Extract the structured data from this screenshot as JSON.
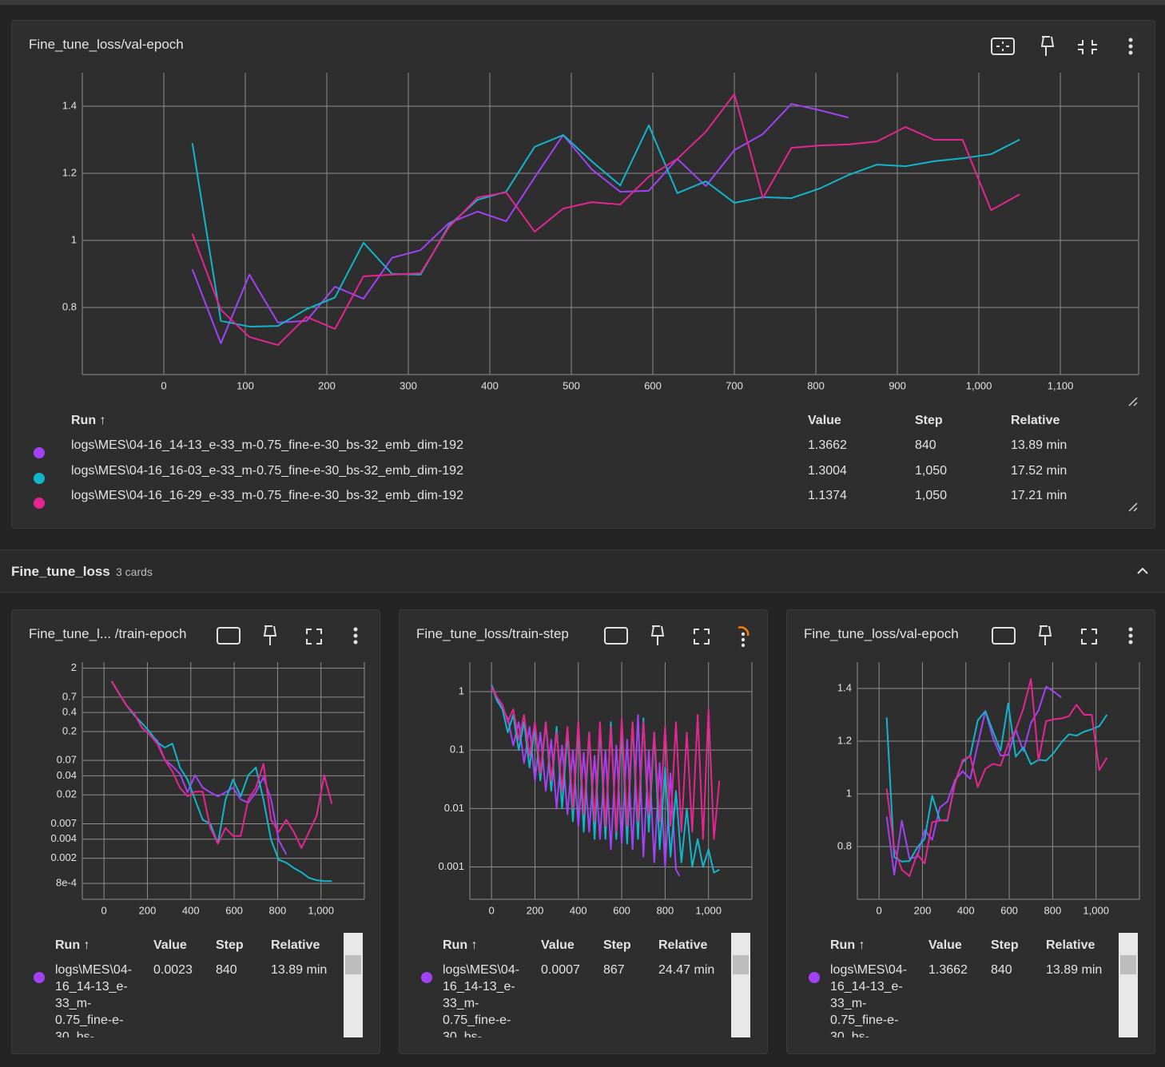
{
  "section": {
    "title": "Fine_tune_loss",
    "count": "3 cards"
  },
  "chart_data": [
    {
      "type": "line",
      "title": "Fine_tune_loss/val-epoch",
      "log_y": false,
      "grid": true,
      "xlim": [
        -100,
        1196
      ],
      "ylim": [
        0.6,
        1.5
      ],
      "xticks": [
        0,
        100,
        200,
        300,
        400,
        500,
        600,
        700,
        800,
        900,
        {
          "value": 1000,
          "label": "1,000"
        },
        {
          "value": 1100,
          "label": "1,100"
        }
      ],
      "yticks": [
        0.8,
        1,
        1.2,
        1.4
      ],
      "series": [
        {
          "name": "logs\\MES\\04-16_14-13_e-33_m-0.75_fine-e-30_bs-32_emb_dim-192",
          "color": "#a142f4",
          "x": [
            35,
            70,
            105,
            140,
            175,
            210,
            245,
            280,
            315,
            350,
            385,
            420,
            455,
            490,
            525,
            560,
            595,
            630,
            665,
            700,
            735,
            770,
            805,
            840
          ],
          "values": [
            0.914,
            0.693,
            0.898,
            0.755,
            0.76,
            0.862,
            0.826,
            0.948,
            0.971,
            1.052,
            1.086,
            1.057,
            1.188,
            1.314,
            1.212,
            1.145,
            1.148,
            1.243,
            1.162,
            1.269,
            1.317,
            1.407,
            1.388,
            1.366
          ]
        },
        {
          "name": "logs\\MES\\04-16_16-03_e-33_m-0.75_fine-e-30_bs-32_emb_dim-192",
          "color": "#12b5cb",
          "x": [
            35,
            70,
            105,
            140,
            175,
            210,
            245,
            280,
            315,
            350,
            385,
            420,
            455,
            490,
            525,
            560,
            595,
            630,
            665,
            700,
            735,
            770,
            805,
            840,
            875,
            910,
            945,
            980,
            1015,
            1050
          ],
          "values": [
            1.29,
            0.76,
            0.743,
            0.745,
            0.795,
            0.83,
            0.993,
            0.9,
            0.898,
            1.045,
            1.121,
            1.145,
            1.279,
            1.314,
            1.236,
            1.164,
            1.343,
            1.141,
            1.176,
            1.112,
            1.129,
            1.126,
            1.155,
            1.195,
            1.226,
            1.221,
            1.236,
            1.245,
            1.257,
            1.3004
          ]
        },
        {
          "name": "logs\\MES\\04-16_16-29_e-33_m-0.75_fine-e-30_bs-32_emb_dim-192",
          "color": "#e52592",
          "x": [
            35,
            70,
            105,
            140,
            175,
            210,
            245,
            280,
            315,
            350,
            385,
            420,
            455,
            490,
            525,
            560,
            595,
            630,
            665,
            700,
            735,
            770,
            805,
            840,
            875,
            910,
            945,
            980,
            1015,
            1050
          ],
          "values": [
            1.02,
            0.793,
            0.712,
            0.688,
            0.772,
            0.736,
            0.893,
            0.898,
            0.902,
            1.04,
            1.128,
            1.143,
            1.026,
            1.095,
            1.114,
            1.107,
            1.19,
            1.243,
            1.324,
            1.436,
            1.126,
            1.276,
            1.283,
            1.286,
            1.295,
            1.338,
            1.3,
            1.3,
            1.09,
            1.1374
          ]
        }
      ],
      "table": {
        "headers": [
          "Run ↑",
          "Value",
          "Step",
          "Relative"
        ],
        "rows": [
          [
            "1.3662",
            "840",
            "13.89 min"
          ],
          [
            "1.3004",
            "1,050",
            "17.52 min"
          ],
          [
            "1.1374",
            "1,050",
            "17.21 min"
          ]
        ]
      }
    },
    {
      "type": "line",
      "title": "Fine_tune_l... /train-epoch",
      "log_y": true,
      "grid": true,
      "xlim": [
        -100,
        1200
      ],
      "ylim": [
        0.00045,
        2.5
      ],
      "xticks": [
        0,
        200,
        400,
        600,
        800,
        {
          "value": 1000,
          "label": "1,000"
        }
      ],
      "yticks": [
        2,
        0.7,
        0.4,
        0.2,
        0.07,
        0.04,
        0.02,
        0.007,
        0.004,
        0.002,
        {
          "value": 0.0008,
          "label": "8e-4"
        }
      ],
      "series": [
        {
          "name": "logs\\MES\\04-16_14-13_e-33_m-0.75_fine-e-30_bs-32_emb_dim-192",
          "color": "#a142f4",
          "x": [
            35,
            70,
            105,
            140,
            175,
            210,
            245,
            280,
            315,
            350,
            385,
            420,
            455,
            490,
            525,
            560,
            595,
            630,
            665,
            700,
            735,
            770,
            805,
            840
          ],
          "values": [
            1.25,
            0.79,
            0.51,
            0.38,
            0.23,
            0.18,
            0.145,
            0.072,
            0.057,
            0.043,
            0.022,
            0.041,
            0.026,
            0.022,
            0.019,
            0.022,
            0.026,
            0.017,
            0.015,
            0.022,
            0.038,
            0.017,
            0.0039,
            0.0023
          ]
        },
        {
          "name": "logs\\MES\\04-16_16-03_e-33_m-0.75_fine-e-30_bs-32_emb_dim-192",
          "color": "#12b5cb",
          "x": [
            35,
            70,
            105,
            140,
            175,
            210,
            245,
            280,
            315,
            350,
            385,
            420,
            455,
            490,
            525,
            560,
            595,
            630,
            665,
            700,
            735,
            770,
            805,
            840,
            875,
            910,
            945,
            980,
            1015,
            1050
          ],
          "values": [
            1.25,
            0.79,
            0.51,
            0.36,
            0.27,
            0.2,
            0.136,
            0.112,
            0.129,
            0.054,
            0.035,
            0.0168,
            0.0081,
            0.007,
            0.0034,
            0.0168,
            0.035,
            0.019,
            0.041,
            0.054,
            0.0168,
            0.0039,
            0.0019,
            0.0017,
            0.0014,
            0.0012,
            0.00098,
            0.0009,
            0.00087,
            0.00087
          ]
        },
        {
          "name": "logs\\MES\\04-16_16-29_e-33_m-0.75_fine-e-30_bs-32_emb_dim-192",
          "color": "#e52592",
          "x": [
            35,
            70,
            105,
            140,
            175,
            210,
            245,
            280,
            315,
            350,
            385,
            420,
            455,
            490,
            525,
            560,
            595,
            630,
            665,
            700,
            735,
            770,
            805,
            840,
            875,
            910,
            945,
            980,
            1015,
            1050
          ],
          "values": [
            1.25,
            0.79,
            0.51,
            0.38,
            0.23,
            0.18,
            0.129,
            0.072,
            0.047,
            0.026,
            0.019,
            0.0225,
            0.0225,
            0.006,
            0.0034,
            0.006,
            0.0045,
            0.0045,
            0.0168,
            0.026,
            0.062,
            0.0081,
            0.0052,
            0.0081,
            0.0052,
            0.0029,
            0.0052,
            0.0094,
            0.041,
            0.0145
          ]
        }
      ],
      "table": {
        "headers": [
          "Run ↑",
          "Value",
          "Step",
          "Relative"
        ],
        "rows": [
          [
            "0.0023",
            "840",
            "13.89 min"
          ]
        ]
      }
    },
    {
      "type": "line",
      "title": "Fine_tune_loss/train-step",
      "log_y": true,
      "grid": true,
      "xlim": [
        -100,
        1200
      ],
      "ylim": [
        0.00028,
        3.2
      ],
      "xticks": [
        0,
        200,
        400,
        600,
        800,
        {
          "value": 1000,
          "label": "1,000"
        }
      ],
      "yticks": [
        1,
        0.1,
        0.01,
        0.001
      ],
      "series": [
        {
          "name": "logs\\MES\\04-16_14-13_e-33_m-0.75_fine-e-30_bs-32_emb_dim-192",
          "color": "#a142f4",
          "x": [
            0,
            25,
            50,
            75,
            100,
            125,
            150,
            175,
            200,
            225,
            250,
            275,
            300,
            325,
            350,
            375,
            400,
            425,
            450,
            475,
            500,
            525,
            550,
            575,
            600,
            625,
            650,
            675,
            700,
            725,
            750,
            775,
            800,
            825,
            850,
            867
          ],
          "values": [
            1.3,
            0.8,
            0.5,
            0.35,
            0.12,
            0.3,
            0.06,
            0.25,
            0.03,
            0.2,
            0.02,
            0.15,
            0.01,
            0.12,
            0.008,
            0.1,
            0.005,
            0.09,
            0.004,
            0.08,
            0.003,
            0.1,
            0.002,
            0.12,
            0.0025,
            0.15,
            0.002,
            0.4,
            0.0015,
            0.1,
            0.0012,
            0.06,
            0.001,
            0.04,
            0.0009,
            0.0007
          ]
        },
        {
          "name": "logs\\MES\\04-16_16-03_e-33_m-0.75_fine-e-30_bs-32_emb_dim-192",
          "color": "#12b5cb",
          "x": [
            0,
            25,
            50,
            75,
            100,
            125,
            150,
            175,
            200,
            225,
            250,
            275,
            300,
            325,
            350,
            375,
            400,
            425,
            450,
            475,
            500,
            525,
            550,
            575,
            600,
            625,
            650,
            675,
            700,
            725,
            750,
            775,
            800,
            825,
            850,
            875,
            900,
            925,
            950,
            975,
            1000,
            1025,
            1050
          ],
          "values": [
            1.3,
            0.7,
            0.5,
            0.2,
            0.4,
            0.1,
            0.3,
            0.05,
            0.25,
            0.03,
            0.3,
            0.02,
            0.25,
            0.01,
            0.2,
            0.006,
            0.3,
            0.004,
            0.2,
            0.003,
            0.25,
            0.003,
            0.3,
            0.003,
            0.3,
            0.0025,
            0.3,
            0.003,
            0.35,
            0.004,
            0.2,
            0.002,
            0.05,
            0.0015,
            0.02,
            0.0012,
            0.01,
            0.001,
            0.003,
            0.001,
            0.002,
            0.0008,
            0.0009
          ]
        },
        {
          "name": "logs\\MES\\04-16_16-29_e-33_m-0.75_fine-e-30_bs-32_emb_dim-192",
          "color": "#e52592",
          "x": [
            0,
            25,
            50,
            75,
            100,
            125,
            150,
            175,
            200,
            225,
            250,
            275,
            300,
            325,
            350,
            375,
            400,
            425,
            450,
            475,
            500,
            525,
            550,
            575,
            600,
            625,
            650,
            675,
            700,
            725,
            750,
            775,
            800,
            825,
            850,
            875,
            900,
            925,
            950,
            975,
            1000,
            1025,
            1050
          ],
          "values": [
            1.2,
            0.8,
            0.6,
            0.3,
            0.5,
            0.15,
            0.4,
            0.08,
            0.3,
            0.04,
            0.3,
            0.03,
            0.2,
            0.02,
            0.25,
            0.01,
            0.3,
            0.008,
            0.2,
            0.006,
            0.3,
            0.005,
            0.25,
            0.004,
            0.35,
            0.005,
            0.3,
            0.006,
            0.3,
            0.008,
            0.2,
            0.006,
            0.25,
            0.005,
            0.3,
            0.004,
            0.2,
            0.004,
            0.4,
            0.003,
            0.5,
            0.003,
            0.03
          ]
        }
      ],
      "table": {
        "headers": [
          "Run ↑",
          "Value",
          "Step",
          "Relative"
        ],
        "rows": [
          [
            "0.0007",
            "867",
            "24.47 min"
          ]
        ]
      }
    },
    {
      "type": "line",
      "title": "Fine_tune_loss/val-epoch",
      "log_y": false,
      "grid": true,
      "xlim": [
        -100,
        1200
      ],
      "ylim": [
        0.6,
        1.5
      ],
      "xticks": [
        0,
        200,
        400,
        600,
        800,
        {
          "value": 1000,
          "label": "1,000"
        }
      ],
      "yticks": [
        0.8,
        1,
        1.2,
        1.4
      ],
      "series": [
        {
          "name": "logs\\MES\\04-16_14-13_e-33_m-0.75_fine-e-30_bs-32_emb_dim-192",
          "color": "#a142f4",
          "x": [
            35,
            70,
            105,
            140,
            175,
            210,
            245,
            280,
            315,
            350,
            385,
            420,
            455,
            490,
            525,
            560,
            595,
            630,
            665,
            700,
            735,
            770,
            805,
            840
          ],
          "values": [
            0.914,
            0.693,
            0.898,
            0.755,
            0.76,
            0.862,
            0.826,
            0.948,
            0.971,
            1.052,
            1.086,
            1.057,
            1.188,
            1.314,
            1.212,
            1.145,
            1.148,
            1.243,
            1.162,
            1.269,
            1.317,
            1.407,
            1.388,
            1.366
          ]
        },
        {
          "name": "logs\\MES\\04-16_16-03_e-33_m-0.75_fine-e-30_bs-32_emb_dim-192",
          "color": "#12b5cb",
          "x": [
            35,
            70,
            105,
            140,
            175,
            210,
            245,
            280,
            315,
            350,
            385,
            420,
            455,
            490,
            525,
            560,
            595,
            630,
            665,
            700,
            735,
            770,
            805,
            840,
            875,
            910,
            945,
            980,
            1015,
            1050
          ],
          "values": [
            1.29,
            0.76,
            0.743,
            0.745,
            0.795,
            0.83,
            0.993,
            0.9,
            0.898,
            1.045,
            1.121,
            1.145,
            1.279,
            1.314,
            1.236,
            1.164,
            1.343,
            1.141,
            1.176,
            1.112,
            1.129,
            1.126,
            1.155,
            1.195,
            1.226,
            1.221,
            1.236,
            1.245,
            1.257,
            1.3004
          ]
        },
        {
          "name": "logs\\MES\\04-16_16-29_e-33_m-0.75_fine-e-30_bs-32_emb_dim-192",
          "color": "#e52592",
          "x": [
            35,
            70,
            105,
            140,
            175,
            210,
            245,
            280,
            315,
            350,
            385,
            420,
            455,
            490,
            525,
            560,
            595,
            630,
            665,
            700,
            735,
            770,
            805,
            840,
            875,
            910,
            945,
            980,
            1015,
            1050
          ],
          "values": [
            1.02,
            0.793,
            0.712,
            0.688,
            0.772,
            0.736,
            0.893,
            0.898,
            0.902,
            1.04,
            1.128,
            1.143,
            1.026,
            1.095,
            1.114,
            1.107,
            1.19,
            1.243,
            1.324,
            1.436,
            1.126,
            1.276,
            1.283,
            1.286,
            1.295,
            1.338,
            1.3,
            1.3,
            1.09,
            1.1374
          ]
        }
      ],
      "table": {
        "headers": [
          "Run ↑",
          "Value",
          "Step",
          "Relative"
        ],
        "rows": [
          [
            "1.3662",
            "840",
            "13.89 min"
          ]
        ]
      }
    }
  ]
}
